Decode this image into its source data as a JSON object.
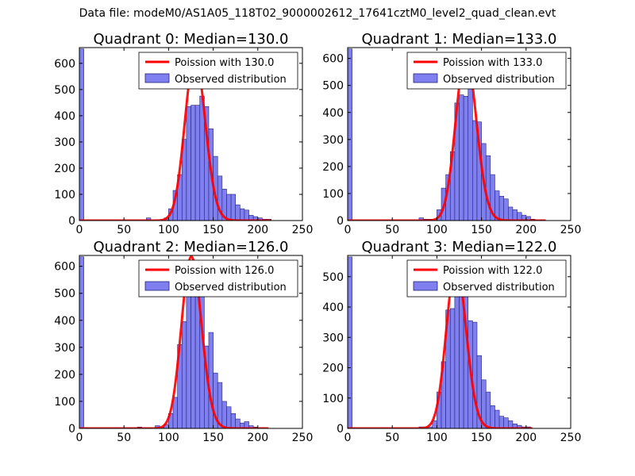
{
  "suptitle": "Data file: modeM0/AS1A05_118T02_9000002612_17641cztM0_level2_quad_clean.evt",
  "colors": {
    "poisson": "#ff0000",
    "hist_fill": "#7f7ff0",
    "hist_edge": "#24247a",
    "axis": "#000000"
  },
  "legend": {
    "poisson_prefix": "Poission with ",
    "observed": "Observed distribution"
  },
  "chart_data": [
    {
      "type": "bar",
      "title": "Quadrant 0: Median=130.0",
      "median": 130.0,
      "poisson_label": "Poission with 130.0",
      "xlim": [
        0,
        250
      ],
      "ylim": [
        0,
        660
      ],
      "xticks": [
        0,
        50,
        100,
        150,
        200,
        250
      ],
      "yticks": [
        0,
        100,
        200,
        300,
        400,
        500,
        600
      ],
      "bin_width": 5,
      "bins": [
        [
          0,
          655
        ],
        [
          75,
          10
        ],
        [
          95,
          10
        ],
        [
          100,
          45
        ],
        [
          105,
          115
        ],
        [
          110,
          175
        ],
        [
          115,
          310
        ],
        [
          120,
          435
        ],
        [
          125,
          440
        ],
        [
          130,
          440
        ],
        [
          135,
          475
        ],
        [
          140,
          435
        ],
        [
          145,
          350
        ],
        [
          150,
          245
        ],
        [
          155,
          170
        ],
        [
          160,
          120
        ],
        [
          165,
          100
        ],
        [
          170,
          100
        ],
        [
          175,
          60
        ],
        [
          180,
          45
        ],
        [
          185,
          40
        ],
        [
          190,
          20
        ],
        [
          195,
          15
        ],
        [
          200,
          10
        ],
        [
          205,
          5
        ],
        [
          210,
          5
        ]
      ],
      "poisson_peak": 625,
      "poisson_xmax": 215
    },
    {
      "type": "bar",
      "title": "Quadrant 1: Median=133.0",
      "median": 133.0,
      "poisson_label": "Poission with 133.0",
      "xlim": [
        0,
        250
      ],
      "ylim": [
        0,
        640
      ],
      "xticks": [
        0,
        50,
        100,
        150,
        200,
        250
      ],
      "yticks": [
        0,
        100,
        200,
        300,
        400,
        500,
        600
      ],
      "bin_width": 5,
      "bins": [
        [
          0,
          635
        ],
        [
          80,
          10
        ],
        [
          85,
          5
        ],
        [
          90,
          5
        ],
        [
          100,
          40
        ],
        [
          105,
          120
        ],
        [
          110,
          170
        ],
        [
          115,
          255
        ],
        [
          120,
          435
        ],
        [
          125,
          465
        ],
        [
          130,
          460
        ],
        [
          135,
          540
        ],
        [
          140,
          370
        ],
        [
          145,
          365
        ],
        [
          150,
          285
        ],
        [
          155,
          240
        ],
        [
          160,
          170
        ],
        [
          165,
          110
        ],
        [
          170,
          90
        ],
        [
          175,
          80
        ],
        [
          180,
          50
        ],
        [
          185,
          40
        ],
        [
          190,
          30
        ],
        [
          195,
          20
        ],
        [
          200,
          15
        ],
        [
          205,
          5
        ]
      ],
      "poisson_peak": 615,
      "poisson_xmax": 222
    },
    {
      "type": "bar",
      "title": "Quadrant 2: Median=126.0",
      "median": 126.0,
      "poisson_label": "Poission with 126.0",
      "xlim": [
        0,
        250
      ],
      "ylim": [
        0,
        640
      ],
      "xticks": [
        0,
        50,
        100,
        150,
        200,
        250
      ],
      "yticks": [
        0,
        100,
        200,
        300,
        400,
        500,
        600
      ],
      "bin_width": 5,
      "bins": [
        [
          0,
          635
        ],
        [
          65,
          5
        ],
        [
          85,
          10
        ],
        [
          90,
          5
        ],
        [
          95,
          15
        ],
        [
          100,
          55
        ],
        [
          105,
          115
        ],
        [
          110,
          310
        ],
        [
          115,
          395
        ],
        [
          120,
          600
        ],
        [
          125,
          600
        ],
        [
          130,
          575
        ],
        [
          135,
          565
        ],
        [
          140,
          305
        ],
        [
          145,
          355
        ],
        [
          150,
          205
        ],
        [
          155,
          170
        ],
        [
          160,
          100
        ],
        [
          165,
          80
        ],
        [
          170,
          55
        ],
        [
          175,
          35
        ],
        [
          180,
          20
        ],
        [
          185,
          25
        ],
        [
          190,
          10
        ],
        [
          195,
          5
        ]
      ],
      "poisson_peak": 635,
      "poisson_xmax": 212
    },
    {
      "type": "bar",
      "title": "Quadrant 3: Median=122.0",
      "median": 122.0,
      "poisson_label": "Poission with 122.0",
      "xlim": [
        0,
        250
      ],
      "ylim": [
        0,
        570
      ],
      "xticks": [
        0,
        50,
        100,
        150,
        200,
        250
      ],
      "yticks": [
        0,
        100,
        200,
        300,
        400,
        500
      ],
      "bin_width": 5,
      "bins": [
        [
          0,
          565
        ],
        [
          80,
          5
        ],
        [
          85,
          5
        ],
        [
          90,
          5
        ],
        [
          95,
          25
        ],
        [
          100,
          120
        ],
        [
          105,
          220
        ],
        [
          110,
          390
        ],
        [
          115,
          395
        ],
        [
          120,
          525
        ],
        [
          125,
          480
        ],
        [
          130,
          460
        ],
        [
          135,
          355
        ],
        [
          140,
          350
        ],
        [
          145,
          240
        ],
        [
          150,
          160
        ],
        [
          155,
          120
        ],
        [
          160,
          75
        ],
        [
          165,
          60
        ],
        [
          170,
          40
        ],
        [
          175,
          35
        ],
        [
          180,
          25
        ],
        [
          185,
          15
        ],
        [
          190,
          10
        ],
        [
          195,
          5
        ],
        [
          200,
          5
        ]
      ],
      "poisson_peak": 540,
      "poisson_xmax": 207
    }
  ]
}
